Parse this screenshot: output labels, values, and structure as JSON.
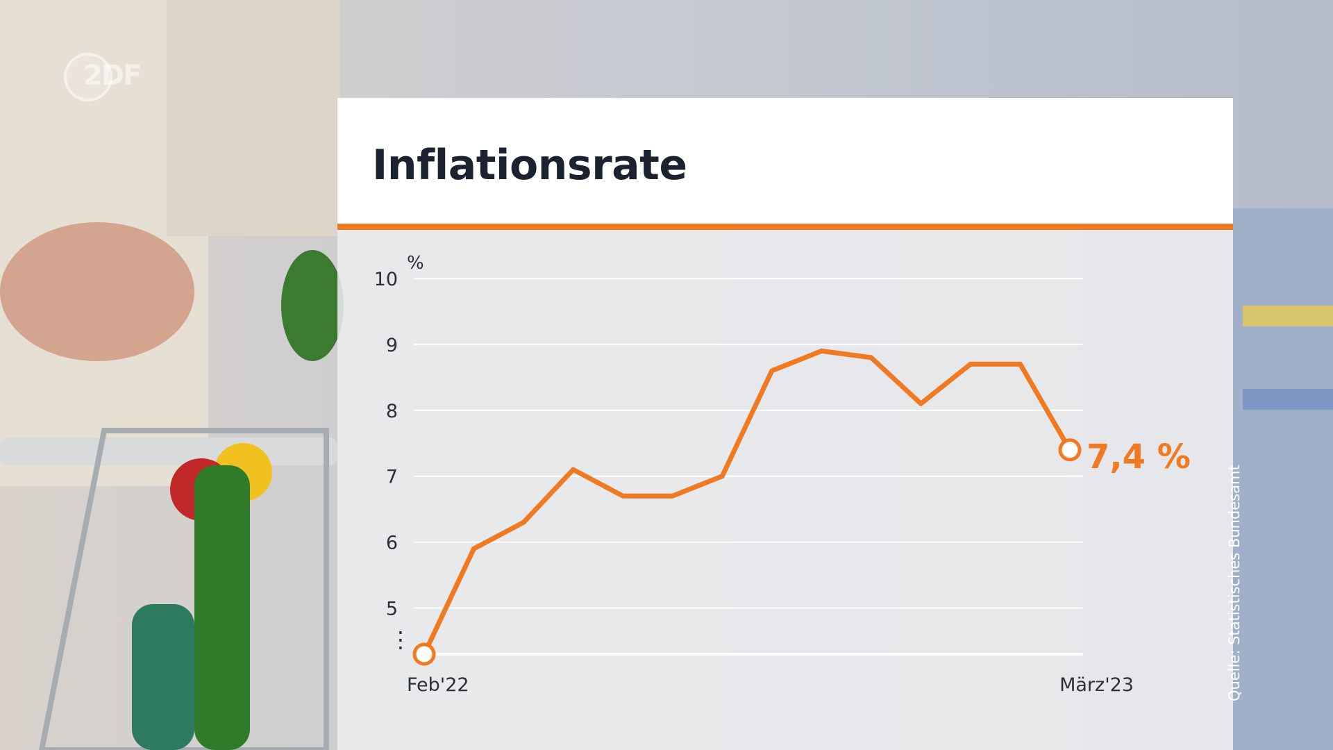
{
  "logo": {
    "text": "2DF"
  },
  "source_note": "Quelle: Statistisches Bundesamt",
  "colors": {
    "accent": "#ef7a22",
    "title": "#1c2330",
    "axis_text": "#2b2f38",
    "grid": "#ffffff"
  },
  "chart_data": {
    "type": "line",
    "title": "Inflationsrate",
    "ylabel": "%",
    "ylim": [
      4.3,
      10
    ],
    "yticks": [
      "10",
      "9",
      "8",
      "7",
      "6",
      "5"
    ],
    "y_break_marker": "⋮",
    "x_labels": [
      "Feb'22",
      "März'23"
    ],
    "series": [
      {
        "values": [
          4.3,
          5.9,
          6.3,
          7.1,
          6.7,
          6.7,
          7.0,
          8.6,
          8.9,
          8.8,
          8.1,
          8.7,
          8.7,
          7.4
        ]
      }
    ],
    "end_label": "7,4 %"
  }
}
